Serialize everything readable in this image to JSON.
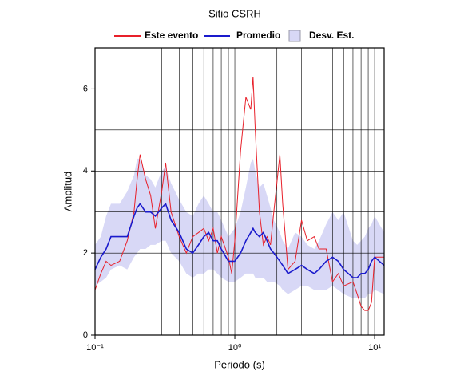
{
  "chart_data": {
    "type": "line",
    "title": "Sitio CSRH",
    "x_label": "Periodo (s)",
    "y_label": "Amplitud",
    "log_x": true,
    "grid": true,
    "xlim": [
      0.1,
      11.7
    ],
    "ylim": [
      0,
      7
    ],
    "xticks": [
      {
        "value": 0.1,
        "label": "10⁻¹"
      },
      {
        "value": 1,
        "label": "10⁰"
      },
      {
        "value": 10,
        "label": "10¹"
      }
    ],
    "x_minor_ticks": [
      0.2,
      0.3,
      0.4,
      0.5,
      0.6,
      0.7,
      0.8,
      0.9,
      2,
      3,
      4,
      5,
      6,
      7,
      8,
      9
    ],
    "yticks": [
      0,
      2,
      4,
      6
    ],
    "y_minor_ticks": [
      1,
      3,
      5,
      7
    ],
    "x": [
      0.1,
      0.11,
      0.12,
      0.13,
      0.15,
      0.17,
      0.19,
      0.2,
      0.21,
      0.23,
      0.25,
      0.27,
      0.3,
      0.32,
      0.35,
      0.4,
      0.45,
      0.5,
      0.55,
      0.6,
      0.65,
      0.7,
      0.75,
      0.8,
      0.9,
      0.95,
      1,
      1.1,
      1.2,
      1.3,
      1.35,
      1.4,
      1.5,
      1.6,
      1.7,
      1.8,
      1.9,
      2.1,
      2.2,
      2.4,
      2.7,
      3,
      3.3,
      3.7,
      4,
      4.5,
      5,
      5.5,
      6,
      7,
      7.5,
      8,
      8.5,
      9,
      9.5,
      10,
      11.7
    ],
    "series": [
      {
        "name": "Este evento",
        "color": "#e8202a",
        "values": [
          1.1,
          1.5,
          1.8,
          1.7,
          1.8,
          2.3,
          3.0,
          3.8,
          4.4,
          3.8,
          3.4,
          2.6,
          3.5,
          4.2,
          3.0,
          2.4,
          2.0,
          2.4,
          2.5,
          2.6,
          2.3,
          2.6,
          2.0,
          2.4,
          1.9,
          1.5,
          2.3,
          4.5,
          5.8,
          5.5,
          6.3,
          5.0,
          3.0,
          2.2,
          2.4,
          2.2,
          3.0,
          4.4,
          3.2,
          1.6,
          1.8,
          2.8,
          2.3,
          2.4,
          2.1,
          2.1,
          1.3,
          1.5,
          1.2,
          1.3,
          1.0,
          0.7,
          0.6,
          0.6,
          0.8,
          1.9,
          1.9
        ]
      },
      {
        "name": "Promedio",
        "color": "#1a1acc",
        "values": [
          1.6,
          1.9,
          2.1,
          2.4,
          2.4,
          2.4,
          2.9,
          3.1,
          3.2,
          3.0,
          3.0,
          2.9,
          3.1,
          3.2,
          2.8,
          2.5,
          2.1,
          2.0,
          2.2,
          2.4,
          2.5,
          2.3,
          2.3,
          2.1,
          1.8,
          1.8,
          1.8,
          2.0,
          2.3,
          2.5,
          2.6,
          2.5,
          2.4,
          2.5,
          2.3,
          2.1,
          2.0,
          1.8,
          1.7,
          1.5,
          1.6,
          1.7,
          1.6,
          1.5,
          1.6,
          1.8,
          1.9,
          1.8,
          1.6,
          1.4,
          1.4,
          1.5,
          1.5,
          1.6,
          1.8,
          1.9,
          1.7
        ]
      }
    ],
    "band": {
      "name": "Desv. Est.",
      "color": "#d8d8f6",
      "upper": [
        2.2,
        2.4,
        2.9,
        3.2,
        3.2,
        3.5,
        3.9,
        4.3,
        4.3,
        3.9,
        3.8,
        3.6,
        4.0,
        4.1,
        3.7,
        3.3,
        3.0,
        2.9,
        3.2,
        3.4,
        3.2,
        3.0,
        3.0,
        2.8,
        2.4,
        2.5,
        2.6,
        3.0,
        3.6,
        4.2,
        4.3,
        4.0,
        3.6,
        3.7,
        3.4,
        3.1,
        2.8,
        2.5,
        2.3,
        2.1,
        2.5,
        2.4,
        2.2,
        2.1,
        2.3,
        2.7,
        3.0,
        2.8,
        3.0,
        2.3,
        2.2,
        2.3,
        2.4,
        2.6,
        2.7,
        2.9,
        2.5
      ],
      "lower": [
        1.2,
        1.3,
        1.4,
        1.6,
        1.7,
        1.6,
        1.9,
        2.0,
        2.1,
        2.1,
        2.2,
        2.2,
        2.3,
        2.3,
        2.0,
        1.8,
        1.5,
        1.4,
        1.5,
        1.5,
        1.6,
        1.6,
        1.5,
        1.4,
        1.3,
        1.3,
        1.3,
        1.4,
        1.5,
        1.5,
        1.5,
        1.4,
        1.4,
        1.4,
        1.3,
        1.3,
        1.3,
        1.2,
        1.1,
        1.0,
        1.1,
        1.2,
        1.2,
        1.1,
        1.1,
        1.1,
        1.2,
        1.1,
        1.0,
        0.9,
        0.9,
        0.9,
        0.9,
        1.0,
        1.0,
        1.1,
        1.0
      ]
    }
  }
}
